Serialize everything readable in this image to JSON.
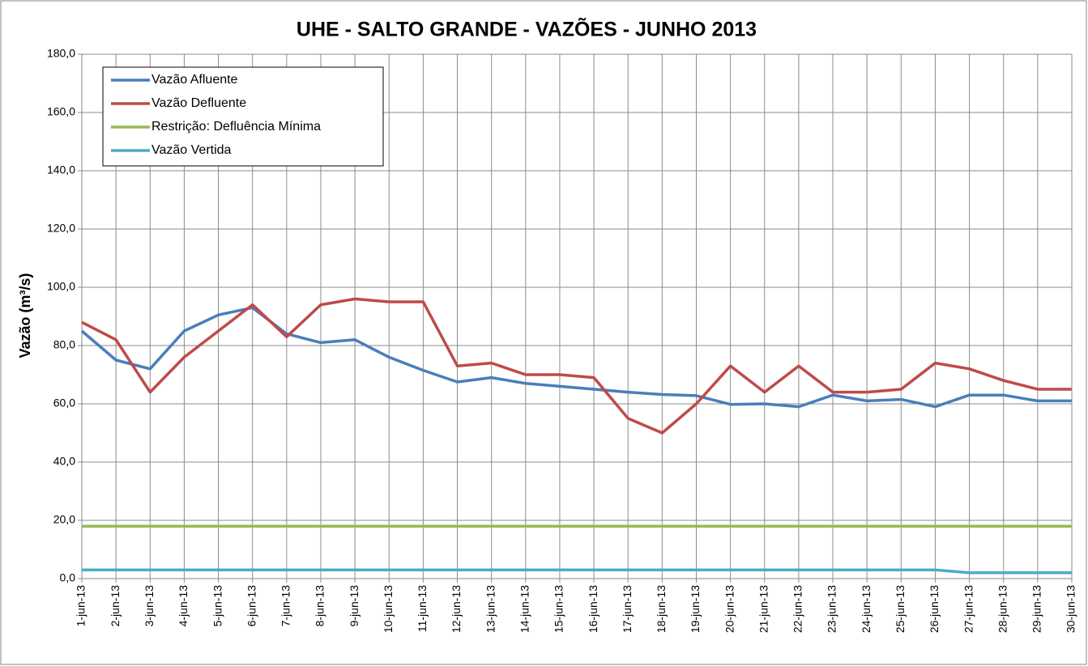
{
  "chart_data": {
    "type": "line",
    "title": "UHE - SALTO GRANDE - VAZÕES - JUNHO 2013",
    "y_label": "Vazão (m³/s)",
    "categories": [
      "1-jun-13",
      "2-jun-13",
      "3-jun-13",
      "4-jun-13",
      "5-jun-13",
      "6-jun-13",
      "7-jun-13",
      "8-jun-13",
      "9-jun-13",
      "10-jun-13",
      "11-jun-13",
      "12-jun-13",
      "13-jun-13",
      "14-jun-13",
      "15-jun-13",
      "16-jun-13",
      "17-jun-13",
      "18-jun-13",
      "19-jun-13",
      "20-jun-13",
      "21-jun-13",
      "22-jun-13",
      "23-jun-13",
      "24-jun-13",
      "25-jun-13",
      "26-jun-13",
      "27-jun-13",
      "28-jun-13",
      "29-jun-13",
      "30-jun-13"
    ],
    "series": [
      {
        "name": "Vazão Afluente",
        "color": "#4a7ebb",
        "values": [
          85,
          75,
          72,
          85,
          90.5,
          93,
          84,
          81,
          82,
          76,
          71.5,
          67.5,
          69,
          67,
          66,
          65,
          64,
          63.2,
          62.8,
          59.8,
          60,
          59,
          63,
          61,
          61.5,
          59,
          63,
          63,
          61,
          61
        ]
      },
      {
        "name": "Vazão Defluente",
        "color": "#be4b48",
        "values": [
          88,
          82,
          64,
          76,
          85,
          94,
          83,
          94,
          96,
          95,
          95,
          73,
          74,
          70,
          70,
          69,
          55,
          50,
          60,
          73,
          64,
          73,
          64,
          64,
          65,
          74,
          72,
          68,
          65,
          65
        ]
      },
      {
        "name": "Restrição: Defluência Mínima",
        "color": "#98b954",
        "values": [
          18,
          18,
          18,
          18,
          18,
          18,
          18,
          18,
          18,
          18,
          18,
          18,
          18,
          18,
          18,
          18,
          18,
          18,
          18,
          18,
          18,
          18,
          18,
          18,
          18,
          18,
          18,
          18,
          18,
          18
        ]
      },
      {
        "name": "Vazão Vertida",
        "color": "#4bacc6",
        "values": [
          3,
          3,
          3,
          3,
          3,
          3,
          3,
          3,
          3,
          3,
          3,
          3,
          3,
          3,
          3,
          3,
          3,
          3,
          3,
          3,
          3,
          3,
          3,
          3,
          3,
          3,
          2,
          2,
          2,
          2
        ]
      }
    ],
    "ylim": [
      0,
      180
    ],
    "yticks": [
      {
        "value": 0,
        "label": "0,0"
      },
      {
        "value": 20,
        "label": "20,0"
      },
      {
        "value": 40,
        "label": "40,0"
      },
      {
        "value": 60,
        "label": "60,0"
      },
      {
        "value": 80,
        "label": "80,0"
      },
      {
        "value": 100,
        "label": "100,0"
      },
      {
        "value": 120,
        "label": "120,0"
      },
      {
        "value": 140,
        "label": "140,0"
      },
      {
        "value": 160,
        "label": "160,0"
      },
      {
        "value": 180,
        "label": "180,0"
      }
    ],
    "grid": true,
    "legend": "top-left"
  }
}
